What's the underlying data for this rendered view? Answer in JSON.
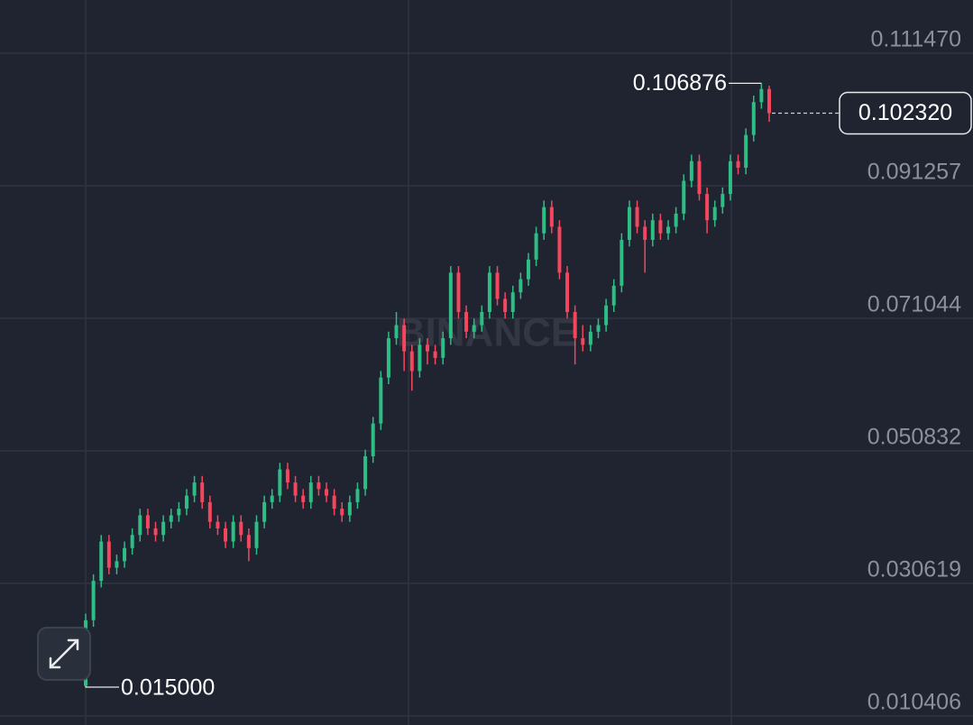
{
  "chart_data": {
    "type": "candlestick",
    "watermark": "BINANCE",
    "ylim": [
      0.00902,
      0.11958
    ],
    "yticks": [
      {
        "value": 0.11147,
        "label": "0.111470"
      },
      {
        "value": 0.091257,
        "label": "0.091257"
      },
      {
        "value": 0.071044,
        "label": "0.071044"
      },
      {
        "value": 0.050832,
        "label": "0.050832"
      },
      {
        "value": 0.030619,
        "label": "0.030619"
      },
      {
        "value": 0.010406,
        "label": "0.010406"
      }
    ],
    "grid": true,
    "up_color": "#2ebd85",
    "down_color": "#f6465d",
    "open": [
      0.015,
      0.025,
      0.031,
      0.037,
      0.033,
      0.034,
      0.036,
      0.038,
      0.041,
      0.039,
      0.038,
      0.04,
      0.041,
      0.042,
      0.044,
      0.046,
      0.043,
      0.04,
      0.039,
      0.037,
      0.04,
      0.038,
      0.036,
      0.04,
      0.043,
      0.044,
      0.048,
      0.046,
      0.044,
      0.043,
      0.046,
      0.045,
      0.044,
      0.042,
      0.041,
      0.043,
      0.045,
      0.05,
      0.055,
      0.062,
      0.068,
      0.07,
      0.066,
      0.063,
      0.067,
      0.066,
      0.065,
      0.068,
      0.078,
      0.072,
      0.069,
      0.07,
      0.072,
      0.078,
      0.074,
      0.072,
      0.075,
      0.077,
      0.08,
      0.084,
      0.088,
      0.085,
      0.078,
      0.072,
      0.068,
      0.067,
      0.069,
      0.07,
      0.073,
      0.076,
      0.083,
      0.088,
      0.085,
      0.083,
      0.086,
      0.084,
      0.085,
      0.087,
      0.092,
      0.095,
      0.09,
      0.086,
      0.088,
      0.09,
      0.095,
      0.094,
      0.099,
      0.104,
      0.106
    ],
    "high": [
      0.026,
      0.032,
      0.038,
      0.038,
      0.035,
      0.037,
      0.039,
      0.042,
      0.042,
      0.04,
      0.041,
      0.042,
      0.043,
      0.045,
      0.047,
      0.047,
      0.044,
      0.041,
      0.04,
      0.041,
      0.041,
      0.039,
      0.041,
      0.044,
      0.045,
      0.049,
      0.049,
      0.047,
      0.045,
      0.047,
      0.047,
      0.046,
      0.045,
      0.043,
      0.044,
      0.046,
      0.051,
      0.056,
      0.063,
      0.069,
      0.072,
      0.071,
      0.067,
      0.068,
      0.068,
      0.067,
      0.069,
      0.079,
      0.079,
      0.073,
      0.071,
      0.073,
      0.079,
      0.079,
      0.075,
      0.076,
      0.078,
      0.081,
      0.085,
      0.089,
      0.089,
      0.086,
      0.079,
      0.073,
      0.07,
      0.07,
      0.071,
      0.074,
      0.077,
      0.084,
      0.089,
      0.089,
      0.086,
      0.087,
      0.087,
      0.086,
      0.088,
      0.093,
      0.096,
      0.096,
      0.091,
      0.089,
      0.091,
      0.096,
      0.096,
      0.1,
      0.105,
      0.106876,
      0.1065
    ],
    "low": [
      0.015,
      0.024,
      0.03,
      0.032,
      0.032,
      0.033,
      0.035,
      0.037,
      0.038,
      0.037,
      0.037,
      0.039,
      0.04,
      0.041,
      0.043,
      0.042,
      0.039,
      0.038,
      0.036,
      0.036,
      0.037,
      0.034,
      0.035,
      0.039,
      0.042,
      0.043,
      0.045,
      0.043,
      0.042,
      0.042,
      0.044,
      0.043,
      0.041,
      0.04,
      0.04,
      0.042,
      0.044,
      0.049,
      0.054,
      0.061,
      0.067,
      0.063,
      0.06,
      0.062,
      0.064,
      0.064,
      0.064,
      0.067,
      0.071,
      0.068,
      0.068,
      0.069,
      0.071,
      0.073,
      0.071,
      0.071,
      0.074,
      0.076,
      0.079,
      0.083,
      0.084,
      0.077,
      0.071,
      0.064,
      0.066,
      0.066,
      0.068,
      0.069,
      0.072,
      0.075,
      0.082,
      0.084,
      0.078,
      0.082,
      0.083,
      0.083,
      0.084,
      0.086,
      0.091,
      0.089,
      0.084,
      0.085,
      0.087,
      0.089,
      0.093,
      0.093,
      0.098,
      0.103,
      0.101
    ],
    "close": [
      0.025,
      0.031,
      0.037,
      0.033,
      0.034,
      0.036,
      0.038,
      0.041,
      0.039,
      0.038,
      0.04,
      0.041,
      0.042,
      0.044,
      0.046,
      0.043,
      0.04,
      0.039,
      0.037,
      0.04,
      0.038,
      0.036,
      0.04,
      0.043,
      0.044,
      0.048,
      0.046,
      0.044,
      0.043,
      0.046,
      0.045,
      0.044,
      0.042,
      0.041,
      0.043,
      0.045,
      0.05,
      0.055,
      0.062,
      0.068,
      0.07,
      0.066,
      0.063,
      0.067,
      0.066,
      0.065,
      0.068,
      0.078,
      0.072,
      0.069,
      0.07,
      0.072,
      0.078,
      0.074,
      0.072,
      0.075,
      0.077,
      0.08,
      0.084,
      0.088,
      0.085,
      0.078,
      0.072,
      0.068,
      0.067,
      0.069,
      0.07,
      0.073,
      0.076,
      0.083,
      0.088,
      0.085,
      0.083,
      0.086,
      0.084,
      0.085,
      0.087,
      0.092,
      0.095,
      0.09,
      0.086,
      0.088,
      0.09,
      0.095,
      0.094,
      0.099,
      0.104,
      0.106,
      0.10232
    ],
    "high_marker": {
      "value": 0.106876,
      "label": "0.106876"
    },
    "low_marker": {
      "value": 0.015,
      "label": "0.015000"
    },
    "last_price": {
      "value": 0.10232,
      "label": "0.102320"
    }
  }
}
